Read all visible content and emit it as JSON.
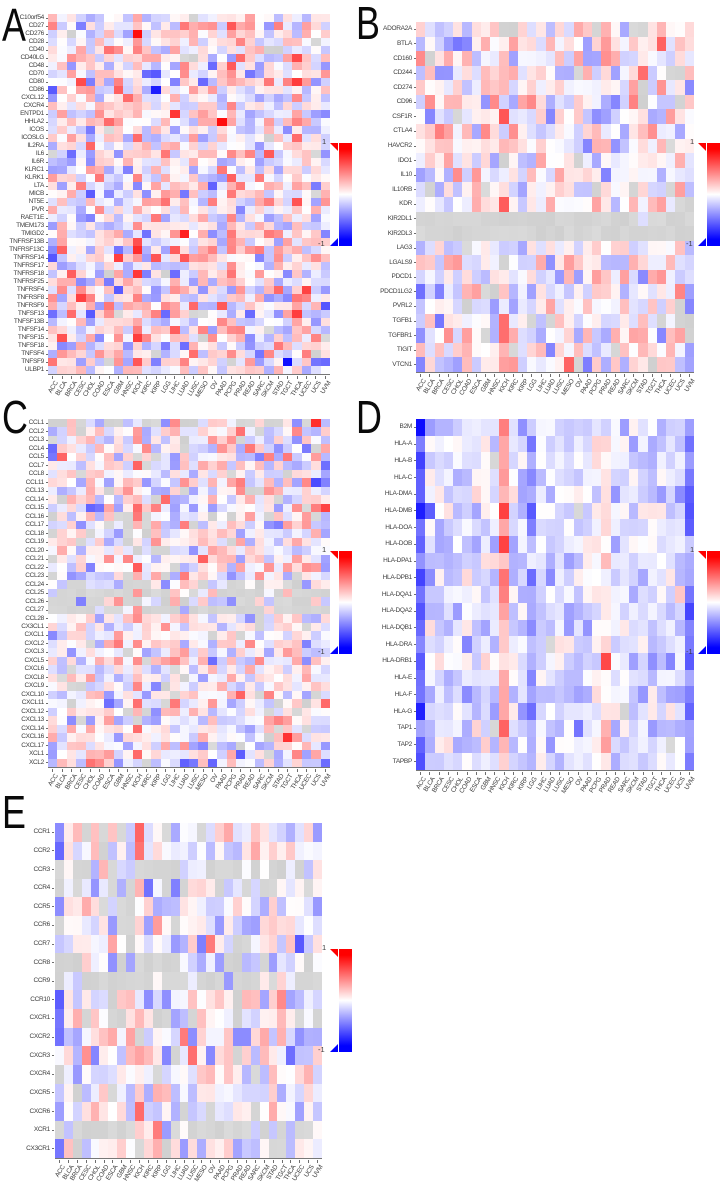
{
  "colorbar": {
    "max_label": "1",
    "min_label": "-1",
    "high_color": "#FF0000",
    "mid_color": "#FFFFFF",
    "low_color": "#0000FF",
    "na_color": "#D9D9D9"
  },
  "chart_data": [
    {
      "type": "heatmap",
      "panel": "A",
      "title": "",
      "value_range": [
        -1,
        1
      ],
      "rows": [
        "C10orf54",
        "CD27",
        "CD276",
        "CD28",
        "CD40",
        "CD40LG",
        "CD48",
        "CD70",
        "CD80",
        "CD86",
        "CXCL12",
        "CXCR4",
        "ENTPD1",
        "HHLA2",
        "ICOS",
        "ICOSLG",
        "IL2RA",
        "IL6",
        "IL6R",
        "KLRC1",
        "KLRK1",
        "LTA",
        "MICB",
        "NT5E",
        "PVR",
        "RAET1E",
        "TMEM173",
        "TMIGD2",
        "TNFRSF13B",
        "TNFRSF13C",
        "TNFRSF14",
        "TNFRSF17",
        "TNFRSF18",
        "TNFRSF25",
        "TNFRSF4",
        "TNFRSF8",
        "TNFRSF9",
        "TNFSF13",
        "TNFSF13B",
        "TNFSF14",
        "TNFSF15",
        "TNFSF18",
        "TNFSF4",
        "TNFSF9",
        "ULBP1"
      ],
      "columns": [
        "ACC",
        "BLCA",
        "BRCA",
        "CESC",
        "CHOL",
        "COAD",
        "ESCA",
        "GBM",
        "HNSC",
        "KICH",
        "KIRC",
        "KIRP",
        "LGG",
        "LIHC",
        "LUAD",
        "LUSC",
        "MESO",
        "OV",
        "PAAD",
        "PCPG",
        "PRAD",
        "READ",
        "SARC",
        "SKCM",
        "STAD",
        "TGCT",
        "THCA",
        "UCEC",
        "UCS",
        "UVM"
      ],
      "seed": 42,
      "amp": 0.62,
      "base_bias": 0.02,
      "na_prob": 0.025,
      "na_rows": {},
      "col_bias": {
        "ACC": -0.08,
        "KICH": 0.22,
        "PCPG": 0.08,
        "THCA": 0.15,
        "UVM": -0.12
      }
    },
    {
      "type": "heatmap",
      "panel": "B",
      "title": "",
      "value_range": [
        -1,
        1
      ],
      "rows": [
        "ADORA2A",
        "BTLA",
        "CD160",
        "CD244",
        "CD274",
        "CD96",
        "CSF1R",
        "CTLA4",
        "HAVCR2",
        "IDO1",
        "IL10",
        "IL10RB",
        "KDR",
        "KIR2DL1",
        "KIR2DL3",
        "LAG3",
        "LGALS9",
        "PDCD1",
        "PDCD1LG2",
        "PVRL2",
        "TGFB1",
        "TGFBR1",
        "TIGIT",
        "VTCN1"
      ],
      "columns": [
        "ACC",
        "BLCA",
        "BRCA",
        "CESC",
        "CHOL",
        "COAD",
        "ESCA",
        "GBM",
        "HNSC",
        "KICH",
        "KIRC",
        "KIRP",
        "LGG",
        "LIHC",
        "LUAD",
        "LUSC",
        "MESO",
        "OV",
        "PAAD",
        "PCPG",
        "PRAD",
        "READ",
        "SARC",
        "SKCM",
        "STAD",
        "TGCT",
        "THCA",
        "UCEC",
        "UCS",
        "UVM"
      ],
      "seed": 7,
      "amp": 0.55,
      "base_bias": 0.0,
      "na_prob": 0.05,
      "na_rows": {
        "KIR2DL1": 0.92,
        "KIR2DL3": 0.92
      },
      "col_bias": {
        "ACC": -0.1,
        "KICH": 0.15,
        "THCA": 0.1,
        "UVM": -0.12
      }
    },
    {
      "type": "heatmap",
      "panel": "C",
      "title": "",
      "value_range": [
        -1,
        1
      ],
      "rows": [
        "CCL1",
        "CCL2",
        "CCL3",
        "CCL4",
        "CCL5",
        "CCL7",
        "CCL8",
        "CCL11",
        "CCL13",
        "CCL14",
        "CCL15",
        "CCL16",
        "CCL17",
        "CCL18",
        "CCL19",
        "CCL20",
        "CCL21",
        "CCL22",
        "CCL23",
        "CCL24",
        "CCL25",
        "CCL26",
        "CCL27",
        "CCL28",
        "CX3CL1",
        "CXCL1",
        "CXCL2",
        "CXCL3",
        "CXCL5",
        "CXCL6",
        "CXCL8",
        "CXCL9",
        "CXCL10",
        "CXCL11",
        "CXCL12",
        "CXCL13",
        "CXCL14",
        "CXCL16",
        "CXCL17",
        "XCL1",
        "XCL2"
      ],
      "columns": [
        "ACC",
        "BLCA",
        "BRCA",
        "CESC",
        "CHOL",
        "COAD",
        "ESCA",
        "GBM",
        "HNSC",
        "KICH",
        "KIRC",
        "KIRP",
        "LGG",
        "LIHC",
        "LUAD",
        "LUSC",
        "MESO",
        "OV",
        "PAAD",
        "PCPG",
        "PRAD",
        "READ",
        "SARC",
        "SKCM",
        "STAD",
        "TGCT",
        "THCA",
        "UCEC",
        "UCS",
        "UVM"
      ],
      "seed": 13,
      "amp": 0.58,
      "base_bias": 0.0,
      "na_prob": 0.07,
      "na_rows": {
        "CCL1": 0.5,
        "CCL16": 0.25,
        "CCL24": 0.2,
        "CCL25": 0.5,
        "CCL26": 0.4,
        "CCL27": 0.6
      },
      "col_bias": {
        "ACC": -0.1,
        "KICH": 0.18,
        "THCA": 0.08,
        "UVM": -0.15
      }
    },
    {
      "type": "heatmap",
      "panel": "D",
      "title": "",
      "value_range": [
        -1,
        1
      ],
      "rows": [
        "B2M",
        "HLA-A",
        "HLA-B",
        "HLA-C",
        "HLA-DMA",
        "HLA-DMB",
        "HLA-DOA",
        "HLA-DOB",
        "HLA-DPA1",
        "HLA-DPB1",
        "HLA-DQA1",
        "HLA-DQA2",
        "HLA-DQB1",
        "HLA-DRA",
        "HLA-DRB1",
        "HLA-E",
        "HLA-F",
        "HLA-G",
        "TAP1",
        "TAP2",
        "TAPBP"
      ],
      "columns": [
        "ACC",
        "BLCA",
        "BRCA",
        "CESC",
        "CHOL",
        "COAD",
        "ESCA",
        "GBM",
        "HNSC",
        "KICH",
        "KIRC",
        "KIRP",
        "LGG",
        "LIHC",
        "LUAD",
        "LUSC",
        "MESO",
        "OV",
        "PAAD",
        "PCPG",
        "PRAD",
        "READ",
        "SARC",
        "SKCM",
        "STAD",
        "TGCT",
        "THCA",
        "UCEC",
        "UCS",
        "UVM"
      ],
      "seed": 99,
      "amp": 0.33,
      "base_bias": -0.13,
      "na_prob": 0.015,
      "na_rows": {},
      "col_bias": {
        "ACC": -0.5,
        "KICH": 0.55,
        "LGG": -0.22,
        "PCPG": 0.1,
        "PRAD": 0.18,
        "UVM": -0.4
      }
    },
    {
      "type": "heatmap",
      "panel": "E",
      "title": "",
      "value_range": [
        -1,
        1
      ],
      "rows": [
        "CCR1",
        "CCR2",
        "CCR3",
        "CCR4",
        "CCR5",
        "CCR6",
        "CCR7",
        "CCR8",
        "CCR9",
        "CCR10",
        "CXCR1",
        "CXCR2",
        "CXCR3",
        "CXCR4",
        "CXCR5",
        "CXCR6",
        "XCR1",
        "CX3CR1"
      ],
      "columns": [
        "ACC",
        "BLCA",
        "BRCA",
        "CESC",
        "CHOL",
        "COAD",
        "ESCA",
        "GBM",
        "HNSC",
        "KICH",
        "KIRC",
        "KIRP",
        "LGG",
        "LIHC",
        "LUAD",
        "LUSC",
        "MESO",
        "OV",
        "PAAD",
        "PCPG",
        "PRAD",
        "READ",
        "SARC",
        "SKCM",
        "STAD",
        "TGCT",
        "THCA",
        "UCEC",
        "UCS",
        "UVM"
      ],
      "seed": 5,
      "amp": 0.5,
      "base_bias": -0.02,
      "na_prob": 0.09,
      "na_rows": {
        "CCR3": 0.55,
        "CCR4": 0.3,
        "CCR8": 0.35,
        "CCR9": 0.6,
        "CXCR1": 0.35,
        "XCR1": 0.55
      },
      "col_bias": {
        "ACC": -0.35,
        "KICH": 0.3,
        "UVM": -0.08
      }
    }
  ]
}
